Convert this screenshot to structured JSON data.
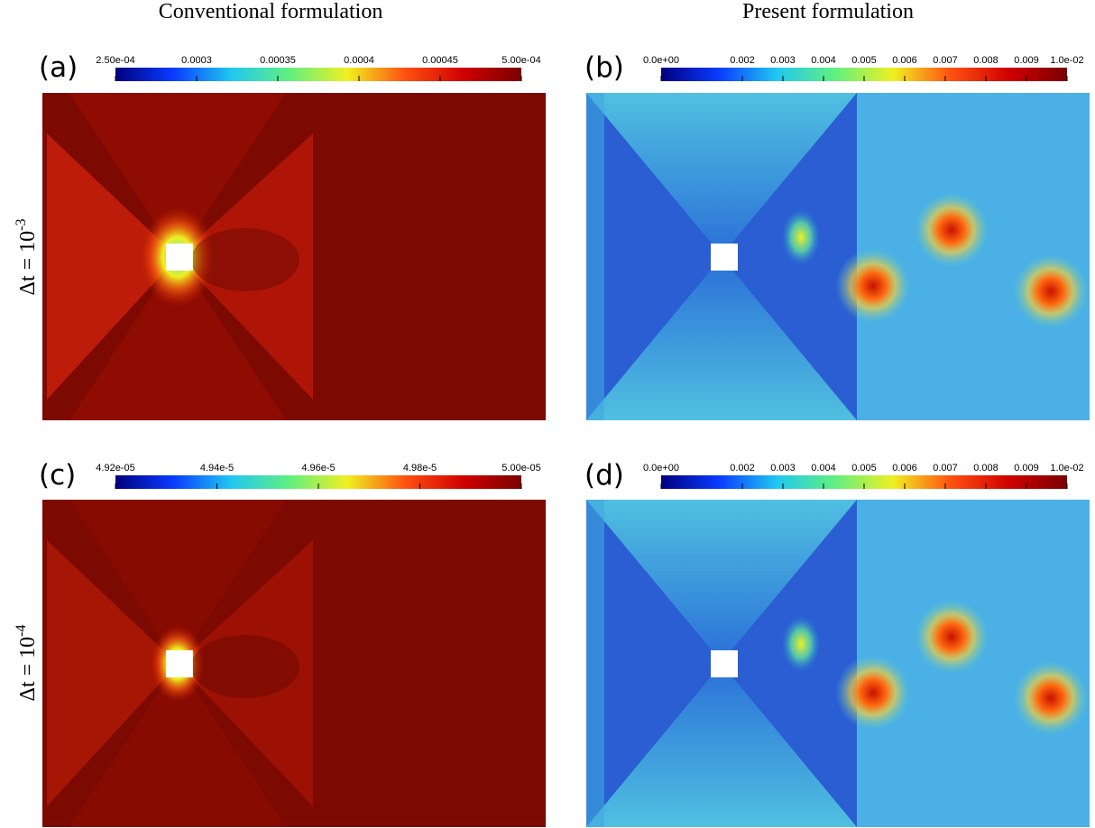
{
  "column_titles": [
    "Conventional formulation",
    "Present formulation"
  ],
  "row_labels": [
    {
      "base": "Δt = 10",
      "exponent": "-3"
    },
    {
      "base": "Δt = 10",
      "exponent": "-4"
    }
  ],
  "chart_data": [
    {
      "type": "heatmap",
      "label": "(a)",
      "colormap": [
        "#00007f",
        "#0a3cff",
        "#20c8f0",
        "#60f080",
        "#f0f020",
        "#ff5010",
        "#d00000",
        "#7a0000"
      ],
      "clim": [
        0.00025,
        0.0005
      ],
      "cticks": [
        {
          "value": 0.00025,
          "label": "2.50e-04"
        },
        0.0003,
        0.00035,
        0.0004,
        0.00045,
        {
          "value": 0.0005,
          "label": "5.00e-04"
        }
      ]
    },
    {
      "type": "heatmap",
      "label": "(b)",
      "colormap": [
        "#00007f",
        "#0a3cff",
        "#20c8f0",
        "#60f080",
        "#f0f020",
        "#ff5010",
        "#d00000",
        "#7a0000"
      ],
      "clim": [
        0,
        0.01
      ],
      "cticks": [
        {
          "value": 0,
          "label": "0.0e+00"
        },
        0.002,
        0.003,
        0.004,
        0.005,
        0.006,
        0.007,
        0.008,
        0.009,
        {
          "value": 0.01,
          "label": "1.0e-02"
        }
      ]
    },
    {
      "type": "heatmap",
      "label": "(c)",
      "colormap": [
        "#00007f",
        "#0a3cff",
        "#20c8f0",
        "#60f080",
        "#f0f020",
        "#ff5010",
        "#d00000",
        "#7a0000"
      ],
      "clim": [
        4.92e-05,
        5e-05
      ],
      "cticks": [
        {
          "value": 4.92e-05,
          "label": "4.92e-05"
        },
        {
          "value": 4.94e-05,
          "label": "4.94e-5"
        },
        {
          "value": 4.96e-05,
          "label": "4.96e-5"
        },
        {
          "value": 4.98e-05,
          "label": "4.98e-5"
        },
        {
          "value": 5e-05,
          "label": "5.00e-05"
        }
      ]
    },
    {
      "type": "heatmap",
      "label": "(d)",
      "colormap": [
        "#00007f",
        "#0a3cff",
        "#20c8f0",
        "#60f080",
        "#f0f020",
        "#ff5010",
        "#d00000",
        "#7a0000"
      ],
      "clim": [
        0,
        0.01
      ],
      "cticks": [
        {
          "value": 0,
          "label": "0.0e+00"
        },
        0.002,
        0.003,
        0.004,
        0.005,
        0.006,
        0.007,
        0.008,
        0.009,
        {
          "value": 0.01,
          "label": "1.0e-02"
        }
      ]
    }
  ]
}
